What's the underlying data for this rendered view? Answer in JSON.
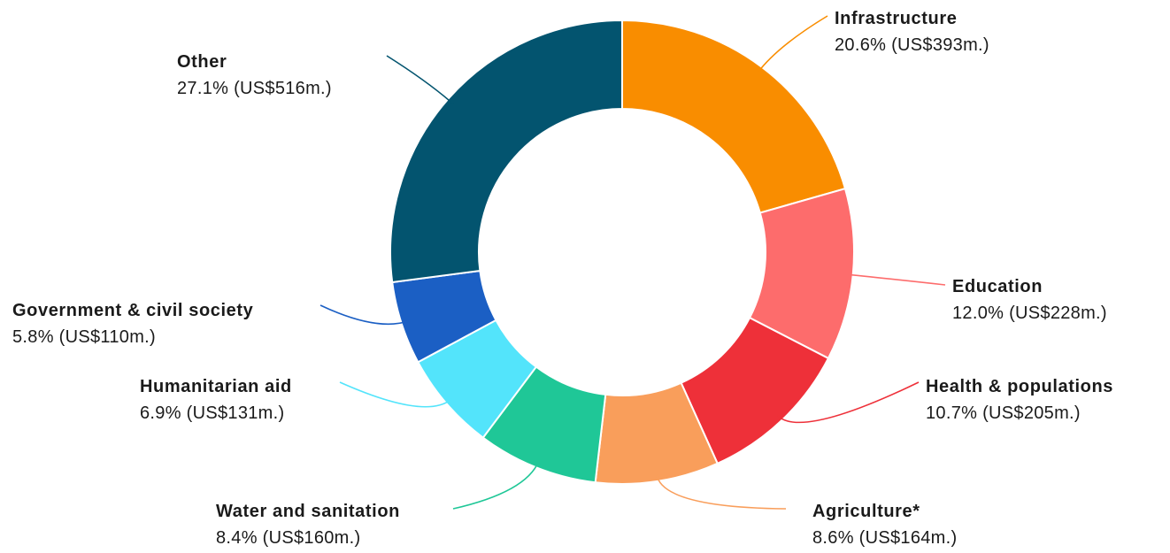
{
  "chart_data": {
    "type": "pie",
    "variant": "donut",
    "title": "",
    "slices": [
      {
        "name": "Infrastructure",
        "percent": 20.6,
        "amount_label": "(US$393m.)",
        "value": 393,
        "color": "#f98d00"
      },
      {
        "name": "Education",
        "percent": 12.0,
        "amount_label": "(US$228m.)",
        "value": 228,
        "color": "#fd6c6c"
      },
      {
        "name": "Health & populations",
        "percent": 10.7,
        "amount_label": "(US$205m.)",
        "value": 205,
        "color": "#ee3039"
      },
      {
        "name": "Agriculture*",
        "percent": 8.6,
        "amount_label": "(US$164m.)",
        "value": 164,
        "color": "#f99e5b"
      },
      {
        "name": "Water and sanitation",
        "percent": 8.4,
        "amount_label": "(US$160m.)",
        "value": 160,
        "color": "#1fc797"
      },
      {
        "name": "Humanitarian aid",
        "percent": 6.9,
        "amount_label": "(US$131m.)",
        "value": 131,
        "color": "#53e4fb"
      },
      {
        "name": "Government & civil society",
        "percent": 5.8,
        "amount_label": "(US$110m.)",
        "value": 110,
        "color": "#1b5fc4"
      },
      {
        "name": "Other",
        "percent": 27.1,
        "amount_label": "(US$516m.)",
        "value": 516,
        "color": "#03546f"
      }
    ],
    "value_texts": [
      "20.6% (US$393m.)",
      "12.0% (US$228m.)",
      "10.7% (US$205m.)",
      "8.6% (US$164m.)",
      "8.4% (US$160m.)",
      "6.9% (US$131m.)",
      "5.8% (US$110m.)",
      "27.1% (US$516m.)"
    ]
  }
}
